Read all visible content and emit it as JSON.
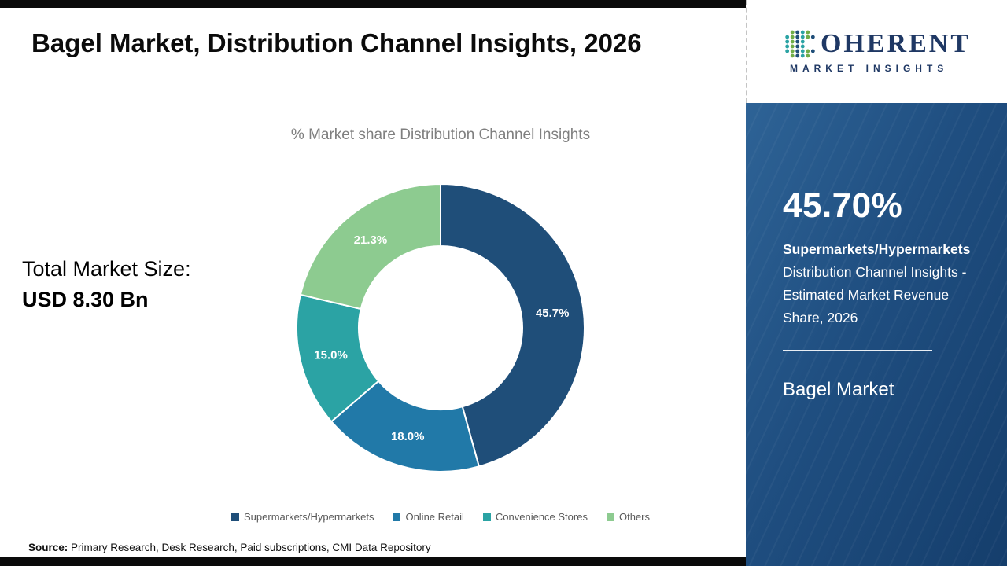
{
  "header": {
    "title": "Bagel Market, Distribution Channel Insights, 2026"
  },
  "chart_data": {
    "type": "pie",
    "donut": true,
    "title": "% Market share Distribution Channel Insights",
    "categories": [
      "Supermarkets/Hypermarkets",
      "Online Retail",
      "Convenience Stores",
      "Others"
    ],
    "values": [
      45.7,
      18.0,
      15.0,
      21.3
    ],
    "labels": [
      "45.7%",
      "18.0%",
      "15.0%",
      "21.3%"
    ],
    "colors": [
      "#1f4e79",
      "#2179a8",
      "#2ba3a4",
      "#8dcb90"
    ],
    "legend_position": "bottom",
    "start_angle_deg": 0,
    "direction": "clockwise"
  },
  "market_size": {
    "label": "Total Market Size:",
    "value": "USD 8.30 Bn"
  },
  "source": {
    "label": "Source:",
    "text": " Primary Research, Desk Research, Paid subscriptions, CMI Data Repository"
  },
  "sidebar": {
    "logo": {
      "icon": "dot-grid-c-icon",
      "word": "OHERENT",
      "subtitle": "MARKET INSIGHTS"
    },
    "stat_value": "45.70%",
    "stat_desc_bold": "Supermarkets/Hypermarkets",
    "stat_desc_rest": " Distribution Channel Insights - Estimated Market Revenue Share, 2026",
    "market_name": "Bagel Market"
  },
  "theme": {
    "segment_dark_blue": "#1f4e79",
    "segment_blue": "#2179a8",
    "segment_teal": "#2ba3a4",
    "segment_green": "#8dcb90",
    "sidebar_bg": "#1f4e80",
    "logo_navy": "#1f3864",
    "bar_black": "#0a0a0a"
  }
}
